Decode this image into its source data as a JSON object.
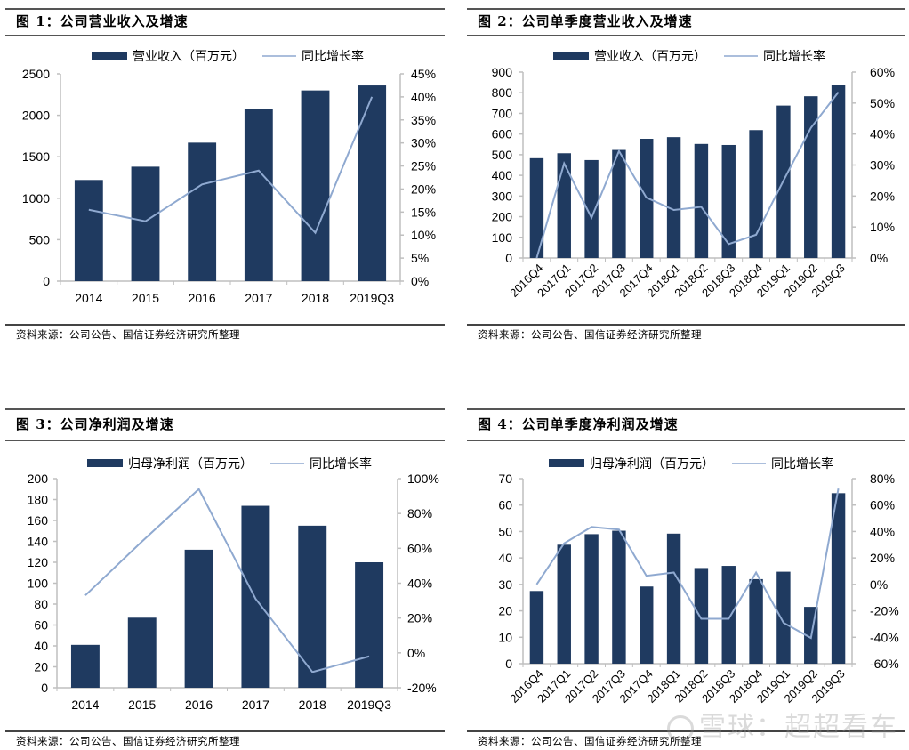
{
  "colors": {
    "bar": "#1f3a60",
    "line": "#8fa9d0",
    "axis": "#bfbfbf",
    "rule": "#555555"
  },
  "watermark": {
    "text": "雪球：超超看车",
    "icon": "snowball-logo-icon"
  },
  "panels": [
    {
      "title": "图 1：公司营业收入及增速",
      "source": "资料来源：公司公告、国信证券经济研究所整理"
    },
    {
      "title": "图 2：公司单季度营业收入及增速",
      "source": "资料来源：公司公告、国信证券经济研究所整理"
    },
    {
      "title": "图 3：公司净利润及增速",
      "source": "资料来源：公司公告、国信证券经济研究所整理"
    },
    {
      "title": "图 4：公司单季度净利润及增速",
      "source": "资料来源：公司公告、国信证券经济研究所整理"
    }
  ],
  "chart_data": [
    {
      "type": "bar",
      "title": "图 1：公司营业收入及增速",
      "categories": [
        "2014",
        "2015",
        "2016",
        "2017",
        "2018",
        "2019Q3"
      ],
      "series": [
        {
          "name": "营业收入（百万元）",
          "type": "bar",
          "axis": "left",
          "values": [
            1220,
            1380,
            1670,
            2080,
            2300,
            2360
          ]
        },
        {
          "name": "同比增长率",
          "type": "line",
          "axis": "right",
          "values": [
            15.5,
            13.0,
            21.0,
            24.0,
            10.5,
            40.0
          ]
        }
      ],
      "ylim": [
        0,
        2500
      ],
      "yticks": [
        "0",
        "500",
        "1000",
        "1500",
        "2000",
        "2500"
      ],
      "y2lim": [
        0,
        45
      ],
      "y2ticks": [
        "0%",
        "5%",
        "10%",
        "15%",
        "20%",
        "25%",
        "30%",
        "35%",
        "40%",
        "45%"
      ],
      "xlabel": "",
      "ylabel": "",
      "grid": false,
      "legend": "top",
      "rotate_x": false
    },
    {
      "type": "bar",
      "title": "图 2：公司单季度营业收入及增速",
      "categories": [
        "2016Q4",
        "2017Q1",
        "2017Q2",
        "2017Q3",
        "2017Q4",
        "2018Q1",
        "2018Q2",
        "2018Q3",
        "2018Q4",
        "2019Q1",
        "2019Q2",
        "2019Q3"
      ],
      "series": [
        {
          "name": "营业收入（百万元）",
          "type": "bar",
          "axis": "left",
          "values": [
            483,
            507,
            474,
            523,
            577,
            585,
            552,
            547,
            619,
            738,
            783,
            838
          ]
        },
        {
          "name": "同比增长率",
          "type": "line",
          "axis": "right",
          "values": [
            0,
            30.5,
            13.0,
            34.5,
            19.5,
            15.5,
            16.5,
            4.5,
            7.5,
            25.0,
            42.0,
            53.5
          ]
        }
      ],
      "ylim": [
        0,
        900
      ],
      "yticks": [
        "0",
        "100",
        "200",
        "300",
        "400",
        "500",
        "600",
        "700",
        "800",
        "900"
      ],
      "y2lim": [
        0,
        60
      ],
      "y2ticks": [
        "0%",
        "10%",
        "20%",
        "30%",
        "40%",
        "50%",
        "60%"
      ],
      "xlabel": "",
      "ylabel": "",
      "grid": false,
      "legend": "top",
      "rotate_x": true
    },
    {
      "type": "bar",
      "title": "图 3：公司净利润及增速",
      "categories": [
        "2014",
        "2015",
        "2016",
        "2017",
        "2018",
        "2019Q3"
      ],
      "series": [
        {
          "name": "归母净利润（百万元）",
          "type": "bar",
          "axis": "left",
          "values": [
            41,
            67,
            132,
            174,
            155,
            120
          ]
        },
        {
          "name": "同比增长率",
          "type": "line",
          "axis": "right",
          "values": [
            33,
            64,
            94,
            31,
            -11,
            -2
          ]
        }
      ],
      "ylim": [
        0,
        200
      ],
      "yticks": [
        "0",
        "20",
        "40",
        "60",
        "80",
        "100",
        "120",
        "140",
        "160",
        "180",
        "200"
      ],
      "y2lim": [
        -20,
        100
      ],
      "y2ticks": [
        "-20%",
        "0%",
        "20%",
        "40%",
        "60%",
        "80%",
        "100%"
      ],
      "xlabel": "",
      "ylabel": "",
      "grid": false,
      "legend": "top",
      "rotate_x": false
    },
    {
      "type": "bar",
      "title": "图 4：公司单季度净利润及增速",
      "categories": [
        "2016Q4",
        "2017Q1",
        "2017Q2",
        "2017Q3",
        "2017Q4",
        "2018Q1",
        "2018Q2",
        "2018Q3",
        "2018Q4",
        "2019Q1",
        "2019Q2",
        "2019Q3"
      ],
      "series": [
        {
          "name": "归母净利润（百万元）",
          "type": "bar",
          "axis": "left",
          "values": [
            27.5,
            45,
            49,
            50.3,
            29.2,
            49.2,
            36.2,
            37,
            32,
            34.8,
            21.5,
            64.5
          ]
        },
        {
          "name": "同比增长率",
          "type": "line",
          "axis": "right",
          "values": [
            0,
            31,
            43.5,
            41.5,
            6.5,
            9,
            -26,
            -26,
            9,
            -29,
            -40.5,
            72.5
          ]
        }
      ],
      "ylim": [
        0,
        70
      ],
      "yticks": [
        "0",
        "10",
        "20",
        "30",
        "40",
        "50",
        "60",
        "70"
      ],
      "y2lim": [
        -60,
        80
      ],
      "y2ticks": [
        "-60%",
        "-40%",
        "-20%",
        "0%",
        "20%",
        "40%",
        "60%",
        "80%"
      ],
      "xlabel": "",
      "ylabel": "",
      "grid": false,
      "legend": "top",
      "rotate_x": true
    }
  ]
}
